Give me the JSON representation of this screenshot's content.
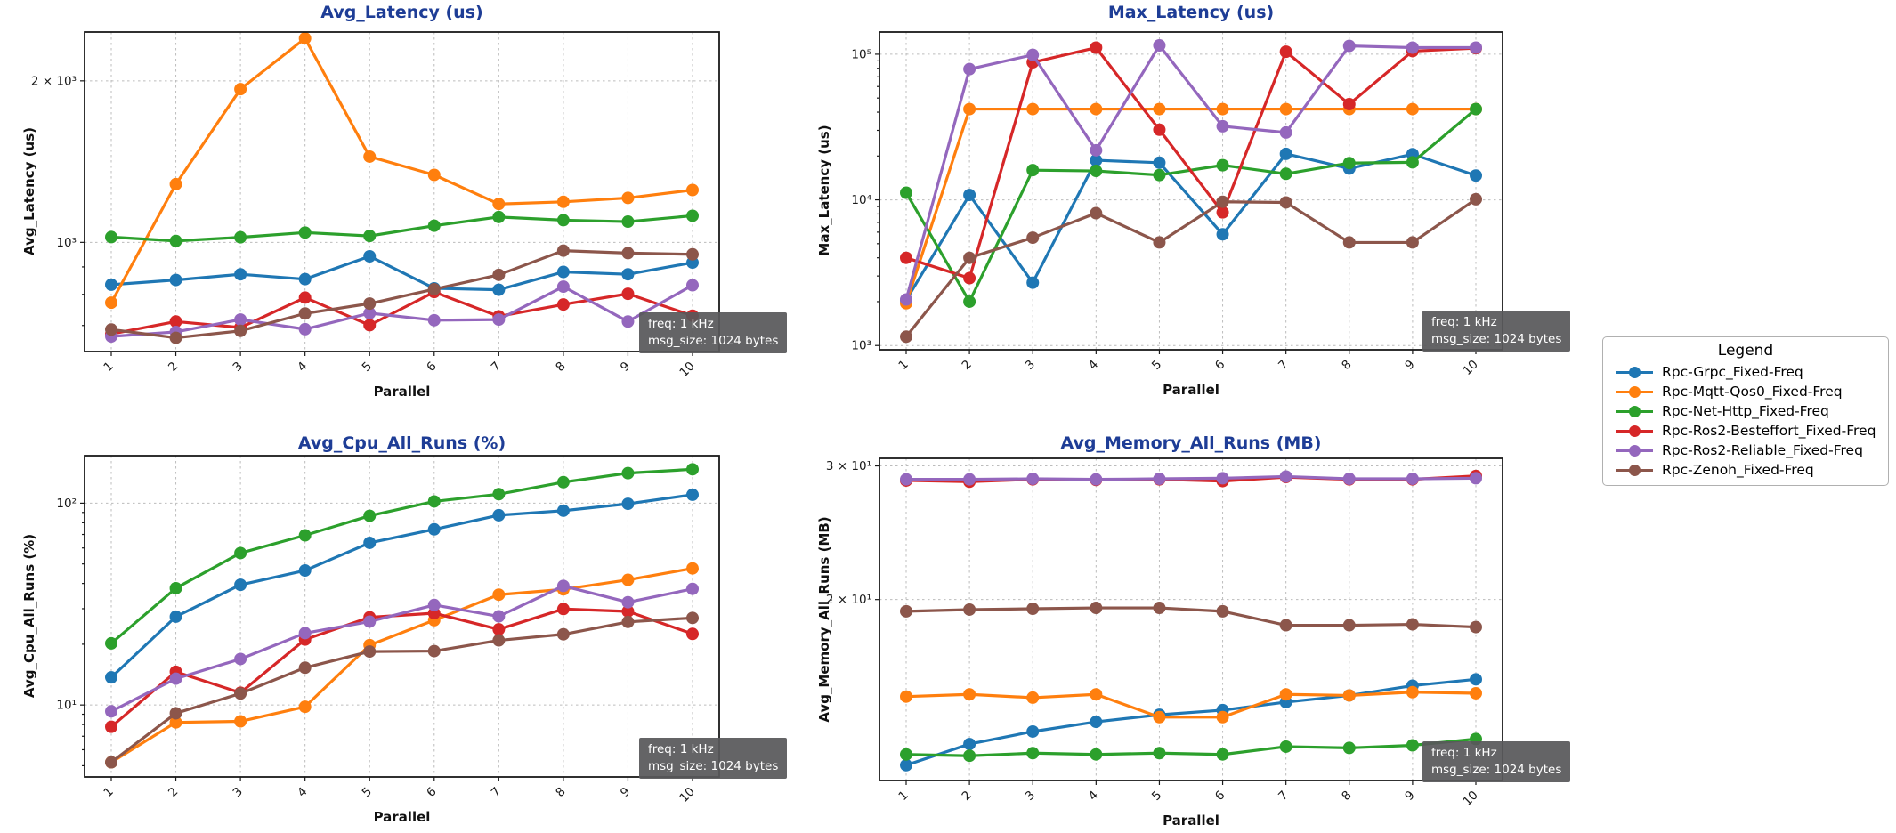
{
  "style": {
    "title_color": "#1e3d96",
    "grid_color": "#bcbcbc",
    "annotation_bg": "rgba(88,88,90,0.93)",
    "annotation_text": "#ffffff",
    "background": "#ffffff"
  },
  "annotation": {
    "line1": "freq: 1 kHz",
    "line2": "msg_size: 1024 bytes"
  },
  "legend": {
    "title": "Legend",
    "items": [
      {
        "label": "Rpc-Grpc_Fixed-Freq",
        "color": "#1f77b4"
      },
      {
        "label": "Rpc-Mqtt-Qos0_Fixed-Freq",
        "color": "#ff7f0e"
      },
      {
        "label": "Rpc-Net-Http_Fixed-Freq",
        "color": "#2ca02c"
      },
      {
        "label": "Rpc-Ros2-Besteffort_Fixed-Freq",
        "color": "#d62728"
      },
      {
        "label": "Rpc-Ros2-Reliable_Fixed-Freq",
        "color": "#9467bd"
      },
      {
        "label": "Rpc-Zenoh_Fixed-Freq",
        "color": "#8c564b"
      }
    ]
  },
  "chart_data": [
    {
      "type": "line",
      "title": "Avg_Latency (us)",
      "xlabel": "Parallel",
      "ylabel": "Avg_Latency (us)",
      "yscale": "log",
      "ylim": [
        626,
        2466
      ],
      "grid": true,
      "x": [
        1,
        2,
        3,
        4,
        5,
        6,
        7,
        8,
        9,
        10
      ],
      "x_tick_labels": [
        "1",
        "2",
        "3",
        "4",
        "5",
        "6",
        "7",
        "8",
        "9",
        "10"
      ],
      "y_ticks": [
        {
          "value": 2000,
          "label": "2 × 10³"
        },
        {
          "value": 1000,
          "label": "10³"
        }
      ],
      "series": [
        {
          "name": "Rpc-Grpc_Fixed-Freq",
          "values": [
            834,
            851,
            872,
            854,
            942,
            821,
            816,
            881,
            872,
            917
          ]
        },
        {
          "name": "Rpc-Mqtt-Qos0_Fixed-Freq",
          "values": [
            772,
            1284,
            1930,
            2400,
            1445,
            1336,
            1179,
            1190,
            1210,
            1252
          ]
        },
        {
          "name": "Rpc-Net-Http_Fixed-Freq",
          "values": [
            1023,
            1006,
            1022,
            1043,
            1028,
            1074,
            1115,
            1100,
            1093,
            1121
          ]
        },
        {
          "name": "Rpc-Ros2-Besteffort_Fixed-Freq",
          "values": [
            675,
            712,
            694,
            789,
            701,
            808,
            728,
            766,
            802,
            730
          ]
        },
        {
          "name": "Rpc-Ros2-Reliable_Fixed-Freq",
          "values": [
            668,
            681,
            718,
            689,
            738,
            716,
            718,
            827,
            712,
            832
          ]
        },
        {
          "name": "Rpc-Zenoh_Fixed-Freq",
          "values": [
            688,
            664,
            684,
            737,
            769,
            818,
            870,
            965,
            955,
            950
          ]
        }
      ]
    },
    {
      "type": "line",
      "title": "Max_Latency (us)",
      "xlabel": "Parallel",
      "ylabel": "Max_Latency (us)",
      "yscale": "log",
      "ylim": [
        935,
        142000
      ],
      "grid": true,
      "x": [
        1,
        2,
        3,
        4,
        5,
        6,
        7,
        8,
        9,
        10
      ],
      "x_tick_labels": [
        "1",
        "2",
        "3",
        "4",
        "5",
        "6",
        "7",
        "8",
        "9",
        "10"
      ],
      "y_ticks": [
        {
          "value": 100000,
          "label": "10⁵"
        },
        {
          "value": 10000,
          "label": "10⁴"
        },
        {
          "value": 1000,
          "label": "10³"
        }
      ],
      "series": [
        {
          "name": "Rpc-Grpc_Fixed-Freq",
          "values": [
            2050,
            10800,
            2700,
            18700,
            18000,
            5800,
            20700,
            16400,
            20600,
            14700
          ]
        },
        {
          "name": "Rpc-Mqtt-Qos0_Fixed-Freq",
          "values": [
            1950,
            42000,
            42000,
            42000,
            42000,
            42000,
            42000,
            42000,
            42000,
            42000
          ]
        },
        {
          "name": "Rpc-Net-Http_Fixed-Freq",
          "values": [
            11200,
            2000,
            16000,
            15800,
            14800,
            17300,
            15100,
            17900,
            18100,
            42000
          ]
        },
        {
          "name": "Rpc-Ros2-Besteffort_Fixed-Freq",
          "values": [
            4000,
            2900,
            88000,
            111000,
            30300,
            8200,
            104000,
            45400,
            105000,
            110000
          ]
        },
        {
          "name": "Rpc-Ros2-Reliable_Fixed-Freq",
          "values": [
            2070,
            79000,
            99000,
            21900,
            115000,
            32000,
            29000,
            114000,
            111000,
            111000
          ]
        },
        {
          "name": "Rpc-Zenoh_Fixed-Freq",
          "values": [
            1150,
            4000,
            5500,
            8100,
            5100,
            9700,
            9600,
            5100,
            5100,
            10100
          ]
        }
      ]
    },
    {
      "type": "line",
      "title": "Avg_Cpu_All_Runs (%)",
      "xlabel": "Parallel",
      "ylabel": "Avg_Cpu_All_Runs (%)",
      "yscale": "log",
      "ylim": [
        4.4,
        172
      ],
      "grid": true,
      "x": [
        1,
        2,
        3,
        4,
        5,
        6,
        7,
        8,
        9,
        10
      ],
      "x_tick_labels": [
        "1",
        "2",
        "3",
        "4",
        "5",
        "6",
        "7",
        "8",
        "9",
        "10"
      ],
      "y_ticks": [
        {
          "value": 100,
          "label": "10²"
        },
        {
          "value": 10,
          "label": "10¹"
        }
      ],
      "series": [
        {
          "name": "Rpc-Grpc_Fixed-Freq",
          "values": [
            13.7,
            27.4,
            39.4,
            46.4,
            63.6,
            74.2,
            87.2,
            91.8,
            99.3,
            110.1
          ]
        },
        {
          "name": "Rpc-Mqtt-Qos0_Fixed-Freq",
          "values": [
            5.2,
            8.2,
            8.3,
            9.8,
            19.8,
            26.3,
            35.2,
            37.4,
            41.7,
            47.5
          ]
        },
        {
          "name": "Rpc-Net-Http_Fixed-Freq",
          "values": [
            20.2,
            37.9,
            56.6,
            69.3,
            86.6,
            102.0,
            110.8,
            127.1,
            140.9,
            147.2
          ]
        },
        {
          "name": "Rpc-Ros2-Besteffort_Fixed-Freq",
          "values": [
            7.8,
            14.6,
            11.5,
            21.1,
            27.2,
            28.5,
            23.7,
            29.9,
            29.1,
            22.5
          ]
        },
        {
          "name": "Rpc-Ros2-Reliable_Fixed-Freq",
          "values": [
            9.3,
            13.5,
            16.9,
            22.7,
            25.9,
            31.3,
            27.5,
            38.9,
            32.3,
            37.6
          ]
        },
        {
          "name": "Rpc-Zenoh_Fixed-Freq",
          "values": [
            5.2,
            9.1,
            11.4,
            15.3,
            18.4,
            18.5,
            20.9,
            22.4,
            25.8,
            27.0
          ]
        }
      ]
    },
    {
      "type": "line",
      "title": "Avg_Memory_All_Runs (MB)",
      "xlabel": "Parallel",
      "ylabel": "Avg_Memory_All_Runs (MB)",
      "yscale": "log",
      "ylim": [
        11.55,
        30.7
      ],
      "grid": true,
      "x": [
        1,
        2,
        3,
        4,
        5,
        6,
        7,
        8,
        9,
        10
      ],
      "x_tick_labels": [
        "1",
        "2",
        "3",
        "4",
        "5",
        "6",
        "7",
        "8",
        "9",
        "10"
      ],
      "y_ticks": [
        {
          "value": 30,
          "label": "3 × 10¹"
        },
        {
          "value": 20,
          "label": "2 × 10¹"
        }
      ],
      "series": [
        {
          "name": "Rpc-Grpc_Fixed-Freq",
          "values": [
            12.1,
            12.9,
            13.4,
            13.8,
            14.1,
            14.3,
            14.65,
            14.95,
            15.4,
            15.7
          ]
        },
        {
          "name": "Rpc-Mqtt-Qos0_Fixed-Freq",
          "values": [
            14.9,
            15.0,
            14.85,
            15.0,
            14.0,
            14.0,
            15.0,
            14.95,
            15.1,
            15.05
          ]
        },
        {
          "name": "Rpc-Net-Http_Fixed-Freq",
          "values": [
            12.5,
            12.45,
            12.55,
            12.5,
            12.55,
            12.5,
            12.8,
            12.75,
            12.85,
            13.1
          ]
        },
        {
          "name": "Rpc-Ros2-Besteffort_Fixed-Freq",
          "values": [
            28.7,
            28.6,
            28.8,
            28.75,
            28.8,
            28.65,
            29.0,
            28.8,
            28.8,
            29.1
          ]
        },
        {
          "name": "Rpc-Ros2-Reliable_Fixed-Freq",
          "values": [
            28.8,
            28.8,
            28.85,
            28.8,
            28.85,
            28.9,
            29.05,
            28.85,
            28.85,
            28.9
          ]
        },
        {
          "name": "Rpc-Zenoh_Fixed-Freq",
          "values": [
            19.3,
            19.4,
            19.45,
            19.5,
            19.5,
            19.3,
            18.5,
            18.5,
            18.55,
            18.4
          ]
        }
      ]
    }
  ]
}
